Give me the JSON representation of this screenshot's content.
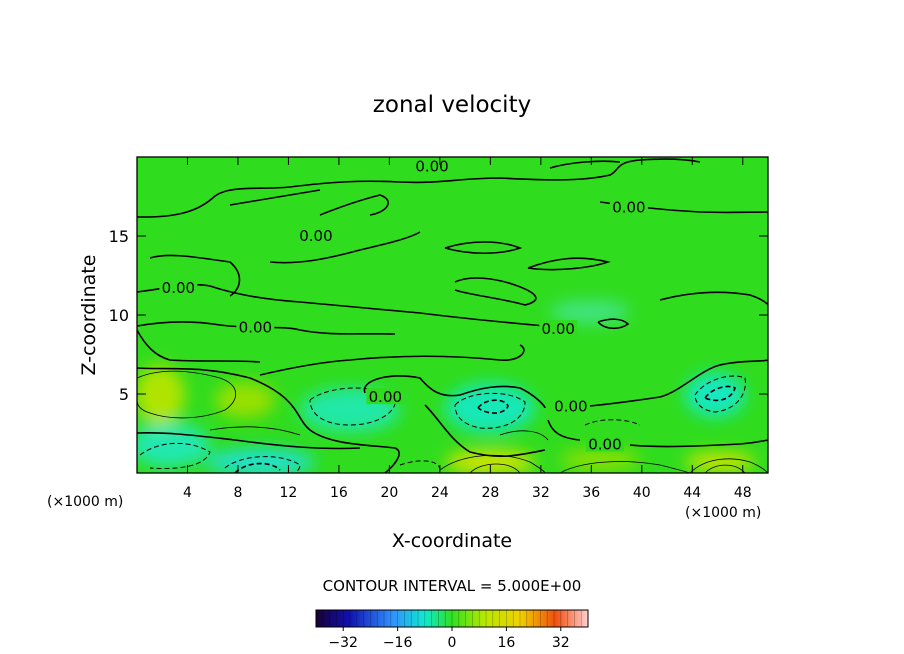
{
  "chart_data": {
    "type": "heatmap",
    "title": "zonal velocity",
    "xlabel": "X-coordinate",
    "ylabel": "Z-coordinate",
    "x_unit_left": "(×1000 m)",
    "x_unit_right": "(×1000 m)",
    "xlim": [
      0,
      50
    ],
    "ylim": [
      0,
      20
    ],
    "x_ticks": [
      "4",
      "8",
      "12",
      "16",
      "20",
      "24",
      "28",
      "32",
      "36",
      "40",
      "44",
      "48"
    ],
    "x_tick_values": [
      4,
      8,
      12,
      16,
      20,
      24,
      28,
      32,
      36,
      40,
      44,
      48
    ],
    "y_ticks": [
      "5",
      "10",
      "15"
    ],
    "y_tick_values": [
      5,
      10,
      15
    ],
    "contour_interval_label": "CONTOUR INTERVAL = 5.000E+00",
    "contour_interval": 5,
    "zero_contour_labels": [
      {
        "text": "0.00",
        "x": 23.3,
        "z": 19.4
      },
      {
        "text": "0.00",
        "x": 38.9,
        "z": 16.8
      },
      {
        "text": "0.00",
        "x": 14.1,
        "z": 15.0
      },
      {
        "text": "0.00",
        "x": 3.2,
        "z": 11.7
      },
      {
        "text": "0.00",
        "x": 9.3,
        "z": 9.2
      },
      {
        "text": "0.00",
        "x": 33.3,
        "z": 9.1
      },
      {
        "text": "0.00",
        "x": 19.6,
        "z": 4.8
      },
      {
        "text": "0.00",
        "x": 34.3,
        "z": 4.2
      },
      {
        "text": "0.00",
        "x": 37.0,
        "z": 1.8
      }
    ],
    "velocity_extrema": [
      {
        "x": 28.5,
        "z": 4.2,
        "sign": "negative"
      },
      {
        "x": 45.5,
        "z": 5.0,
        "sign": "negative"
      },
      {
        "x": 9.5,
        "z": 0.5,
        "sign": "negative"
      },
      {
        "x": 28.5,
        "z": 0.5,
        "sign": "positive"
      },
      {
        "x": 45.0,
        "z": 0.6,
        "sign": "positive"
      }
    ],
    "colorbar": {
      "range": [
        -40,
        40
      ],
      "tick_labels": [
        "−32",
        "−16",
        "0",
        "16",
        "32"
      ],
      "tick_values": [
        -32,
        -16,
        0,
        16,
        32
      ]
    },
    "colors": {
      "background_field": "#2fdc1c",
      "contour_line": "#000000"
    }
  }
}
